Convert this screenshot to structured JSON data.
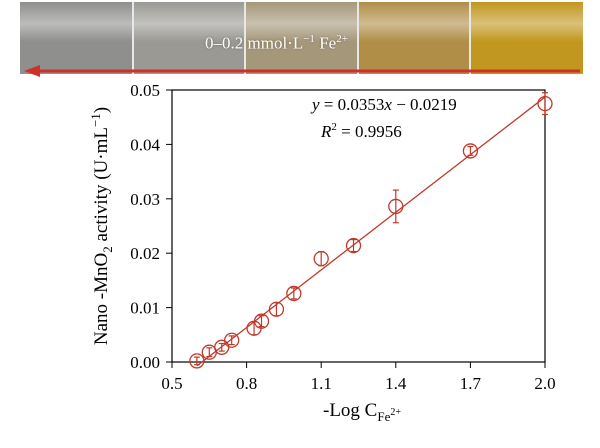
{
  "photo": {
    "label_prefix": "0–0.2 mmol·L",
    "label_exp": "−1",
    "label_ion": " Fe",
    "label_charge": "2+",
    "tube_colors": [
      "#8f8f8e",
      "#9a9993",
      "#a5977a",
      "#b08e48",
      "#c1971f"
    ]
  },
  "chart_data": {
    "type": "scatter",
    "title": "",
    "xlabel": "-Log C",
    "xlabel_sub": "Fe",
    "xlabel_sub_sup": "2+",
    "ylabel_prefix": "Nano -MnO",
    "ylabel_sub": "2",
    "ylabel_suffix": " activity (U·mL",
    "ylabel_exp": "−1",
    "ylabel_close": ")",
    "xlim": [
      0.5,
      2.0
    ],
    "ylim": [
      0.0,
      0.05
    ],
    "xticks": [
      "0.5",
      "0.8",
      "1.1",
      "1.4",
      "1.7",
      "2.0"
    ],
    "yticks": [
      "0.00",
      "0.01",
      "0.02",
      "0.03",
      "0.04",
      "0.05"
    ],
    "series": [
      {
        "x": [
          0.6,
          0.65,
          0.7,
          0.74,
          0.83,
          0.86,
          0.92,
          0.99,
          1.1,
          1.23,
          1.4,
          1.7,
          2.0
        ],
        "y": [
          0.0002,
          0.0018,
          0.0027,
          0.004,
          0.0062,
          0.0075,
          0.0097,
          0.0126,
          0.019,
          0.0214,
          0.0286,
          0.0388,
          0.0475
        ],
        "err": [
          0.0007,
          0.0008,
          0.0007,
          0.0008,
          0.0012,
          0.001,
          0.0012,
          0.001,
          0.0013,
          0.0011,
          0.003,
          0.0008,
          0.002
        ]
      }
    ],
    "fit": {
      "slope": 0.0353,
      "intercept": -0.0219,
      "equation_y": "y",
      "equation_rest": " = 0.0353",
      "equation_x": "x",
      "equation_tail": " − 0.0219",
      "r2_label": "R",
      "r2_exp": "2",
      "r2_value": " = 0.9956"
    },
    "colors": {
      "marker": "#c0392b",
      "axis": "#000000"
    }
  }
}
